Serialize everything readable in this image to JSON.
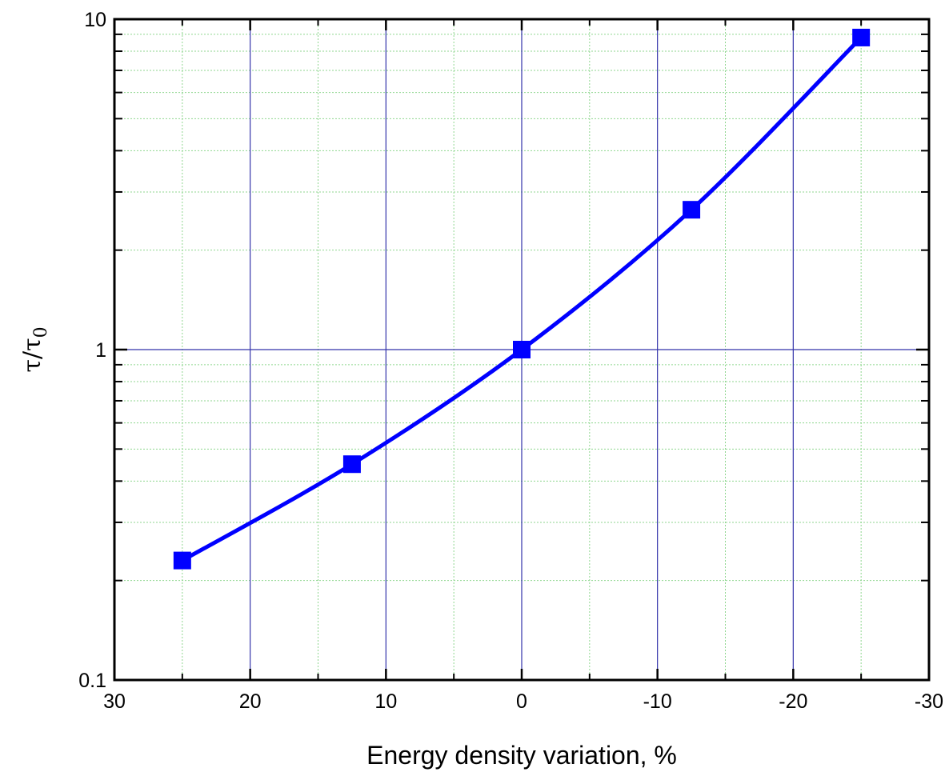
{
  "chart_data": {
    "type": "line",
    "title": "",
    "xlabel": "Energy density variation, %",
    "ylabel": {
      "main": "τ/τ",
      "sub": "0"
    },
    "x_reversed": true,
    "y_scale": "log",
    "xlim": [
      30,
      -30
    ],
    "ylim": [
      0.1,
      10
    ],
    "x_ticks": [
      30,
      20,
      10,
      0,
      -10,
      -20,
      -30
    ],
    "x_tick_labels": [
      "30",
      "20",
      "10",
      "0",
      "-10",
      "-20",
      "-30"
    ],
    "y_ticks": [
      0.1,
      1,
      10
    ],
    "y_tick_labels": [
      "0.1",
      "1",
      "10"
    ],
    "grid": "on",
    "series": [
      {
        "marker": "square",
        "color": "#0000ff",
        "x": [
          25,
          12.5,
          0,
          -12.5,
          -25
        ],
        "y": [
          0.23,
          0.45,
          1.0,
          2.65,
          8.8
        ]
      }
    ]
  },
  "colors": {
    "major_grid": "#3333aa",
    "minor_grid": "#8fd68f",
    "series": "#0000ff",
    "axes": "#000000"
  }
}
